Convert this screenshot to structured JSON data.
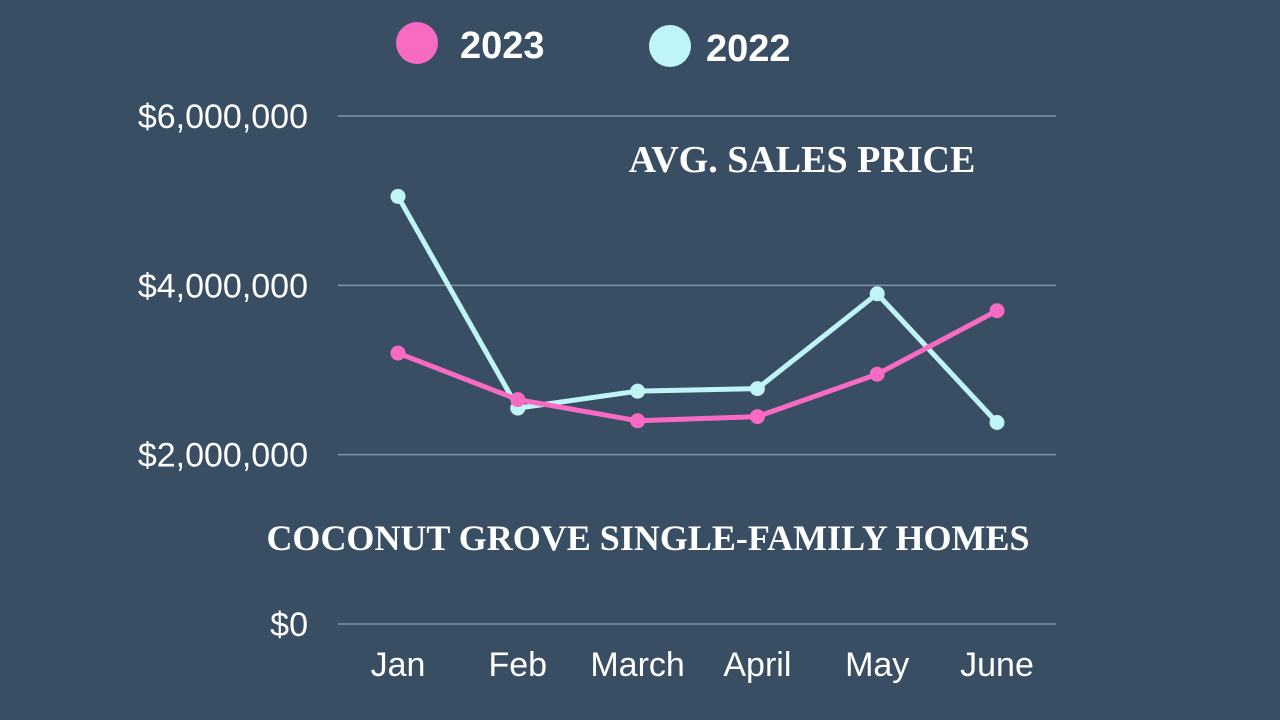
{
  "chart_data": {
    "type": "line",
    "title": "AVG. SALES PRICE",
    "subtitle": "COCONUT GROVE SINGLE-FAMILY HOMES",
    "categories": [
      "Jan",
      "Feb",
      "March",
      "April",
      "May",
      "June"
    ],
    "ylim": [
      0,
      6000000
    ],
    "yticks": [
      0,
      2000000,
      4000000,
      6000000
    ],
    "ytick_labels": [
      "$0",
      "$2,000,000",
      "$4,000,000",
      "$6,000,000"
    ],
    "grid": true,
    "legend_position": "top-center",
    "series": [
      {
        "name": "2023",
        "color": "#f76bc3",
        "values": [
          3200000,
          2650000,
          2400000,
          2450000,
          2950000,
          3700000
        ]
      },
      {
        "name": "2022",
        "color": "#c0f5f7",
        "values": [
          5050000,
          2550000,
          2750000,
          2780000,
          3900000,
          2380000
        ]
      }
    ]
  }
}
